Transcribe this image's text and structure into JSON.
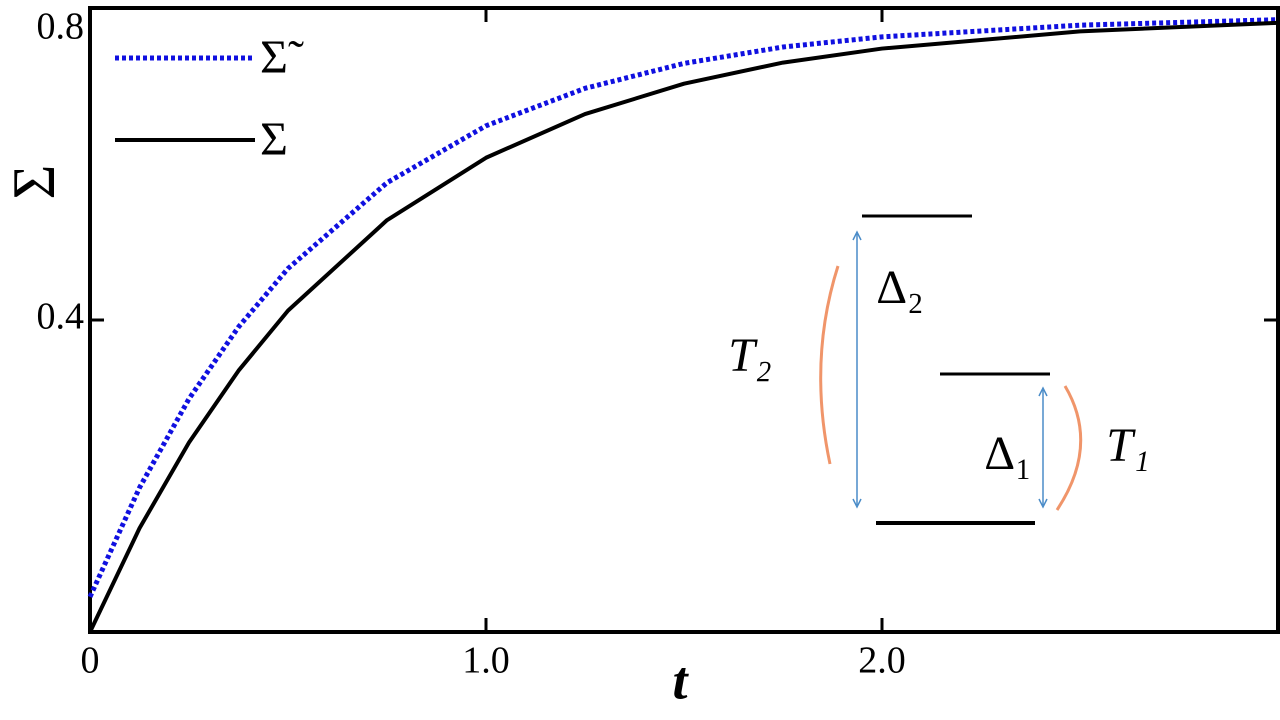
{
  "chart_data": {
    "type": "line",
    "ylabel": "Σ",
    "xlabel": "t",
    "x": [
      0,
      0.125,
      0.25,
      0.375,
      0.5,
      0.75,
      1,
      1.25,
      1.5,
      1.75,
      2,
      2.5,
      3
    ],
    "series": [
      {
        "name": "Σ̃",
        "color": "#1010e0",
        "style": "dotted",
        "values": [
          0.045,
          0.185,
          0.299,
          0.391,
          0.466,
          0.576,
          0.649,
          0.697,
          0.729,
          0.75,
          0.763,
          0.778,
          0.785
        ]
      },
      {
        "name": "Σ",
        "color": "#000000",
        "style": "solid",
        "values": [
          0,
          0.133,
          0.243,
          0.335,
          0.412,
          0.528,
          0.608,
          0.664,
          0.703,
          0.73,
          0.748,
          0.77,
          0.781
        ]
      }
    ],
    "xlim": [
      0,
      3
    ],
    "ylim": [
      0,
      0.8
    ],
    "xticks": [
      0,
      {
        "value": 1,
        "label": "1.0"
      },
      {
        "value": 2,
        "label": "2.0"
      }
    ],
    "yticks": [
      0.4,
      0.8
    ],
    "legend": "upper left",
    "annotations": [
      "T₂",
      "Δ₂",
      "Δ₁",
      "T₁"
    ]
  }
}
